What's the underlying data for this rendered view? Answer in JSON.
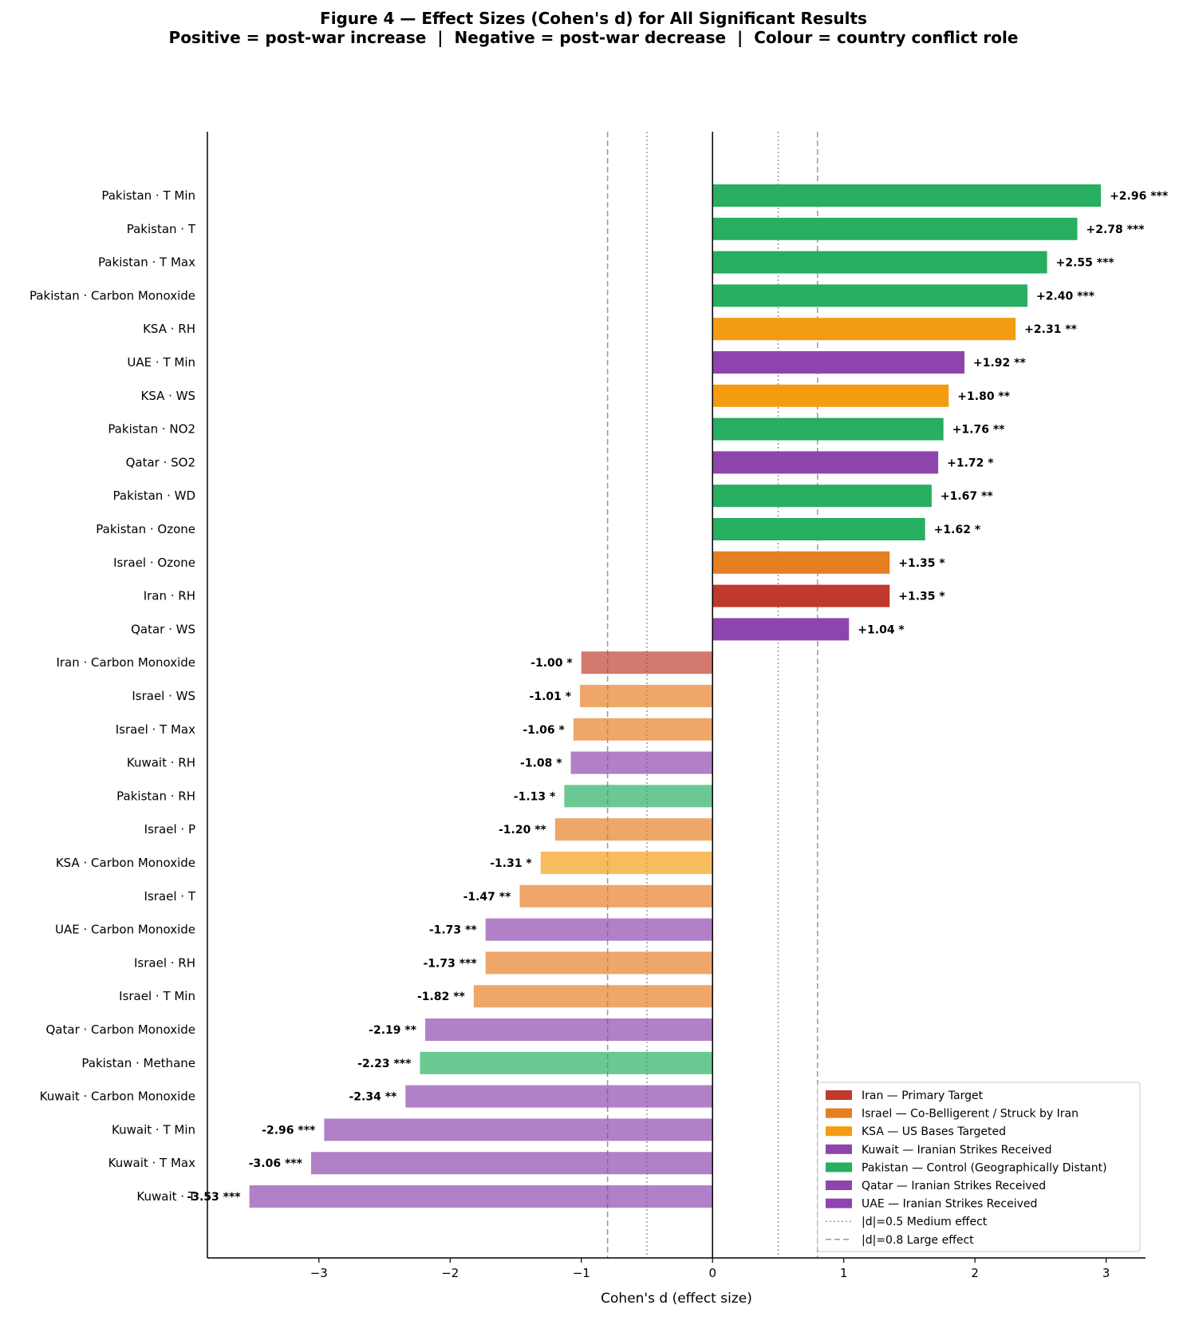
{
  "chart_data": {
    "type": "bar",
    "orientation": "horizontal",
    "title": "Figure 4 — Effect Sizes (Cohen's d) for All Significant Results",
    "subtitle": "Positive = post-war increase  |  Negative = post-war decrease  |  Colour = country conflict role",
    "xlabel": "Cohen's d (effect size)",
    "ylabel": "",
    "xlim": [
      -3.85,
      3.3
    ],
    "xticks": [
      -3,
      -2,
      -1,
      0,
      1,
      2,
      3
    ],
    "xtick_labels": [
      "−3",
      "−2",
      "−1",
      "0",
      "1",
      "2",
      "3"
    ],
    "grid": false,
    "legend_position": "bottom-right",
    "reference_lines": [
      {
        "values": [
          -0.5,
          0.5
        ],
        "style": "dotted",
        "label": "|d|=0.5 Medium effect"
      },
      {
        "values": [
          -0.8,
          0.8
        ],
        "style": "dashed",
        "label": "|d|=0.8 Large effect"
      }
    ],
    "countries": {
      "Iran": {
        "color": "#c0392b",
        "legend": "Iran — Primary Target"
      },
      "Israel": {
        "color": "#e67e22",
        "legend": "Israel — Co-Belligerent / Struck by Iran"
      },
      "KSA": {
        "color": "#f39c12",
        "legend": "KSA — US Bases Targeted"
      },
      "Kuwait": {
        "color": "#8e44ad",
        "legend": "Kuwait — Iranian Strikes Received"
      },
      "Pakistan": {
        "color": "#27ae60",
        "legend": "Pakistan — Control (Geographically Distant)"
      },
      "Qatar": {
        "color": "#8e44ad",
        "legend": "Qatar — Iranian Strikes Received"
      },
      "UAE": {
        "color": "#8e44ad",
        "legend": "UAE — Iranian Strikes Received"
      }
    },
    "legend_order": [
      "Iran",
      "Israel",
      "KSA",
      "Kuwait",
      "Pakistan",
      "Qatar",
      "UAE"
    ],
    "bars": [
      {
        "label": "Pakistan · T Min",
        "country": "Pakistan",
        "value": 2.96,
        "text": "+2.96 ***"
      },
      {
        "label": "Pakistan · T",
        "country": "Pakistan",
        "value": 2.78,
        "text": "+2.78 ***"
      },
      {
        "label": "Pakistan · T Max",
        "country": "Pakistan",
        "value": 2.55,
        "text": "+2.55 ***"
      },
      {
        "label": "Pakistan · Carbon Monoxide",
        "country": "Pakistan",
        "value": 2.4,
        "text": "+2.40 ***"
      },
      {
        "label": "KSA · RH",
        "country": "KSA",
        "value": 2.31,
        "text": "+2.31 **"
      },
      {
        "label": "UAE · T Min",
        "country": "UAE",
        "value": 1.92,
        "text": "+1.92 **"
      },
      {
        "label": "KSA · WS",
        "country": "KSA",
        "value": 1.8,
        "text": "+1.80 **"
      },
      {
        "label": "Pakistan · NO2",
        "country": "Pakistan",
        "value": 1.76,
        "text": "+1.76 **"
      },
      {
        "label": "Qatar · SO2",
        "country": "Qatar",
        "value": 1.72,
        "text": "+1.72 *"
      },
      {
        "label": "Pakistan · WD",
        "country": "Pakistan",
        "value": 1.67,
        "text": "+1.67 **"
      },
      {
        "label": "Pakistan · Ozone",
        "country": "Pakistan",
        "value": 1.62,
        "text": "+1.62 *"
      },
      {
        "label": "Israel · Ozone",
        "country": "Israel",
        "value": 1.35,
        "text": "+1.35 *"
      },
      {
        "label": "Iran · RH",
        "country": "Iran",
        "value": 1.35,
        "text": "+1.35 *"
      },
      {
        "label": "Qatar · WS",
        "country": "Qatar",
        "value": 1.04,
        "text": "+1.04 *"
      },
      {
        "label": "Iran · Carbon Monoxide",
        "country": "Iran",
        "value": -1.0,
        "text": "-1.00 *"
      },
      {
        "label": "Israel · WS",
        "country": "Israel",
        "value": -1.01,
        "text": "-1.01 *"
      },
      {
        "label": "Israel · T Max",
        "country": "Israel",
        "value": -1.06,
        "text": "-1.06 *"
      },
      {
        "label": "Kuwait · RH",
        "country": "Kuwait",
        "value": -1.08,
        "text": "-1.08 *"
      },
      {
        "label": "Pakistan · RH",
        "country": "Pakistan",
        "value": -1.13,
        "text": "-1.13 *"
      },
      {
        "label": "Israel · P",
        "country": "Israel",
        "value": -1.2,
        "text": "-1.20 **"
      },
      {
        "label": "KSA · Carbon Monoxide",
        "country": "KSA",
        "value": -1.31,
        "text": "-1.31 *"
      },
      {
        "label": "Israel · T",
        "country": "Israel",
        "value": -1.47,
        "text": "-1.47 **"
      },
      {
        "label": "UAE · Carbon Monoxide",
        "country": "UAE",
        "value": -1.73,
        "text": "-1.73 **"
      },
      {
        "label": "Israel · RH",
        "country": "Israel",
        "value": -1.73,
        "text": "-1.73 ***"
      },
      {
        "label": "Israel · T Min",
        "country": "Israel",
        "value": -1.82,
        "text": "-1.82 **"
      },
      {
        "label": "Qatar · Carbon Monoxide",
        "country": "Qatar",
        "value": -2.19,
        "text": "-2.19 **"
      },
      {
        "label": "Pakistan · Methane",
        "country": "Pakistan",
        "value": -2.23,
        "text": "-2.23 ***"
      },
      {
        "label": "Kuwait · Carbon Monoxide",
        "country": "Kuwait",
        "value": -2.34,
        "text": "-2.34 **"
      },
      {
        "label": "Kuwait · T Min",
        "country": "Kuwait",
        "value": -2.96,
        "text": "-2.96 ***"
      },
      {
        "label": "Kuwait · T Max",
        "country": "Kuwait",
        "value": -3.06,
        "text": "-3.06 ***"
      },
      {
        "label": "Kuwait · T",
        "country": "Kuwait",
        "value": -3.53,
        "text": "-3.53 ***"
      }
    ]
  }
}
